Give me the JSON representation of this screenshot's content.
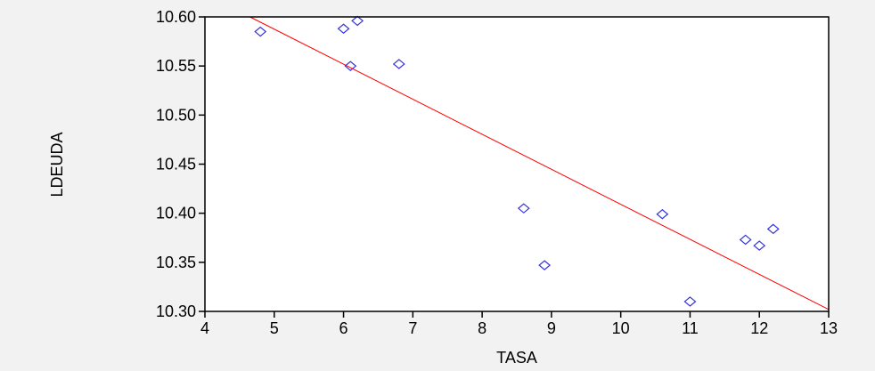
{
  "chart_data": {
    "type": "scatter",
    "xlabel": "TASA",
    "ylabel": "LDEUDA",
    "xlim": [
      4,
      13
    ],
    "ylim": [
      10.3,
      10.6
    ],
    "xticks": [
      "4",
      "5",
      "6",
      "7",
      "8",
      "9",
      "10",
      "11",
      "12",
      "13"
    ],
    "yticks": [
      "10.30",
      "10.35",
      "10.40",
      "10.45",
      "10.50",
      "10.55",
      "10.60"
    ],
    "grid": false,
    "points": [
      {
        "x": 4.8,
        "y": 10.585
      },
      {
        "x": 6.0,
        "y": 10.588
      },
      {
        "x": 6.2,
        "y": 10.596
      },
      {
        "x": 6.1,
        "y": 10.55
      },
      {
        "x": 6.8,
        "y": 10.552
      },
      {
        "x": 8.6,
        "y": 10.405
      },
      {
        "x": 8.9,
        "y": 10.347
      },
      {
        "x": 10.6,
        "y": 10.399
      },
      {
        "x": 11.0,
        "y": 10.31
      },
      {
        "x": 11.8,
        "y": 10.373
      },
      {
        "x": 12.0,
        "y": 10.367
      },
      {
        "x": 12.2,
        "y": 10.384
      }
    ],
    "fit_line": {
      "points": [
        {
          "x": 4.65,
          "y": 10.6
        },
        {
          "x": 13.0,
          "y": 10.302
        }
      ]
    },
    "colors": {
      "points": "#3333dd",
      "fit_line": "#ff0000",
      "plot_background": "#ffffff",
      "outer_background": "#f2f2f2"
    }
  }
}
